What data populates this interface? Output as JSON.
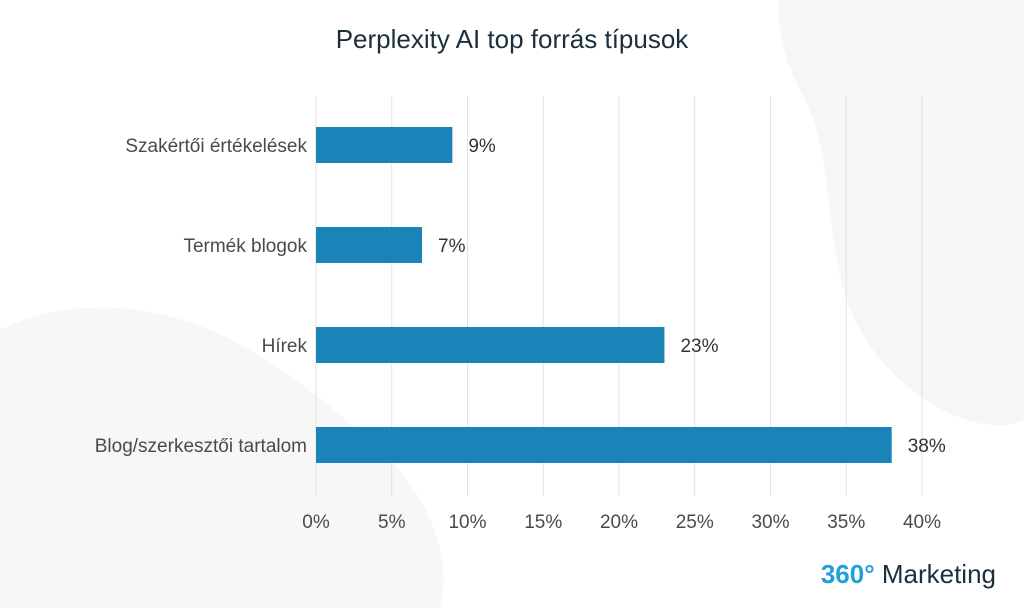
{
  "chart_data": {
    "type": "bar",
    "orientation": "horizontal",
    "title": "Perplexity AI top forrás típusok",
    "categories": [
      "Szakértői értékelések",
      "Termék blogok",
      "Hírek",
      "Blog/szerkesztői tartalom"
    ],
    "values": [
      9,
      7,
      23,
      38
    ],
    "value_labels": [
      "9%",
      "7%",
      "23%",
      "38%"
    ],
    "xlim": [
      0,
      40
    ],
    "xticks": [
      0,
      5,
      10,
      15,
      20,
      25,
      30,
      35,
      40
    ],
    "xtick_labels": [
      "0%",
      "5%",
      "10%",
      "15%",
      "20%",
      "25%",
      "30%",
      "35%",
      "40%"
    ],
    "grid": "vertical",
    "legend": "none",
    "bar_color": "#1a84b8",
    "grid_color": "#e2e2e2"
  },
  "brand": {
    "number": "360°",
    "name": "Marketing",
    "number_color": "#1fa0dd"
  }
}
